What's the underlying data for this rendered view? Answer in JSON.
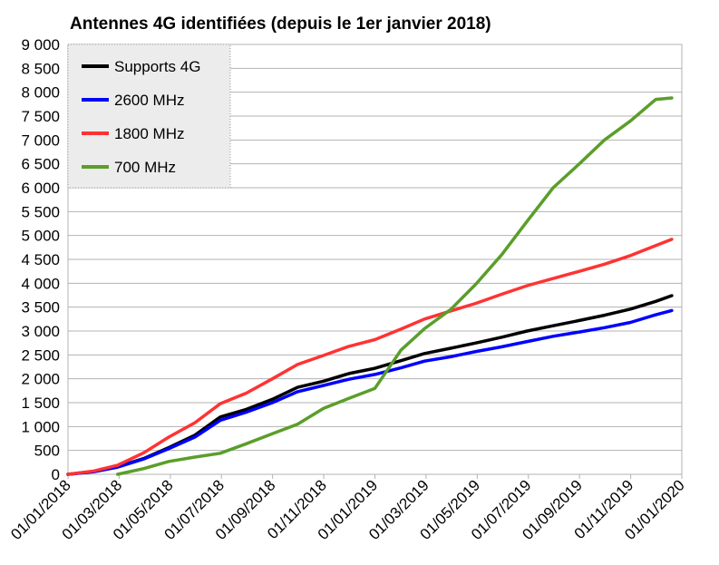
{
  "chart_data": {
    "type": "line",
    "title": "Antennes 4G identifiées (depuis le 1er janvier 2018)",
    "xlabel": "",
    "ylabel": "",
    "x_tick_labels": [
      "01/01/2018",
      "01/03/2018",
      "01/05/2018",
      "01/07/2018",
      "01/09/2018",
      "01/11/2018",
      "01/01/2019",
      "01/03/2019",
      "01/05/2019",
      "01/07/2019",
      "01/09/2019",
      "01/11/2019",
      "01/01/2020"
    ],
    "x_range": [
      "2018-01-01",
      "2020-01-01"
    ],
    "y_range": [
      0,
      9000
    ],
    "y_tick_labels": [
      "0",
      "500",
      "1 000",
      "1 500",
      "2 000",
      "2 500",
      "3 000",
      "3 500",
      "4 000",
      "4 500",
      "5 000",
      "5 500",
      "6 000",
      "6 500",
      "7 000",
      "7 500",
      "8 000",
      "8 500",
      "9 000"
    ],
    "grid": "horizontal",
    "legend_position": "top-left",
    "series": [
      {
        "name": "Supports 4G",
        "color": "#000000",
        "points": [
          [
            "2018-01-01",
            0
          ],
          [
            "2018-02-01",
            60
          ],
          [
            "2018-03-01",
            160
          ],
          [
            "2018-04-01",
            330
          ],
          [
            "2018-05-01",
            560
          ],
          [
            "2018-06-01",
            820
          ],
          [
            "2018-07-01",
            1200
          ],
          [
            "2018-08-01",
            1360
          ],
          [
            "2018-09-01",
            1570
          ],
          [
            "2018-10-01",
            1820
          ],
          [
            "2018-11-01",
            1950
          ],
          [
            "2018-12-01",
            2110
          ],
          [
            "2019-01-01",
            2220
          ],
          [
            "2019-02-01",
            2380
          ],
          [
            "2019-03-01",
            2530
          ],
          [
            "2019-04-01",
            2640
          ],
          [
            "2019-05-01",
            2750
          ],
          [
            "2019-06-01",
            2870
          ],
          [
            "2019-07-01",
            3000
          ],
          [
            "2019-08-01",
            3110
          ],
          [
            "2019-09-01",
            3220
          ],
          [
            "2019-10-01",
            3330
          ],
          [
            "2019-11-01",
            3460
          ],
          [
            "2019-12-01",
            3620
          ],
          [
            "2019-12-20",
            3740
          ]
        ]
      },
      {
        "name": "2600 MHz",
        "color": "#0000ff",
        "points": [
          [
            "2018-01-01",
            0
          ],
          [
            "2018-02-01",
            55
          ],
          [
            "2018-03-01",
            150
          ],
          [
            "2018-04-01",
            320
          ],
          [
            "2018-05-01",
            540
          ],
          [
            "2018-06-01",
            780
          ],
          [
            "2018-07-01",
            1130
          ],
          [
            "2018-08-01",
            1300
          ],
          [
            "2018-09-01",
            1500
          ],
          [
            "2018-10-01",
            1730
          ],
          [
            "2018-11-01",
            1860
          ],
          [
            "2018-12-01",
            1990
          ],
          [
            "2019-01-01",
            2090
          ],
          [
            "2019-02-01",
            2230
          ],
          [
            "2019-03-01",
            2370
          ],
          [
            "2019-04-01",
            2460
          ],
          [
            "2019-05-01",
            2570
          ],
          [
            "2019-06-01",
            2670
          ],
          [
            "2019-07-01",
            2780
          ],
          [
            "2019-08-01",
            2890
          ],
          [
            "2019-09-01",
            2980
          ],
          [
            "2019-10-01",
            3070
          ],
          [
            "2019-11-01",
            3180
          ],
          [
            "2019-12-01",
            3340
          ],
          [
            "2019-12-20",
            3430
          ]
        ]
      },
      {
        "name": "1800 MHz",
        "color": "#ff3333",
        "points": [
          [
            "2018-01-01",
            0
          ],
          [
            "2018-02-01",
            70
          ],
          [
            "2018-03-01",
            190
          ],
          [
            "2018-04-01",
            450
          ],
          [
            "2018-05-01",
            780
          ],
          [
            "2018-06-01",
            1080
          ],
          [
            "2018-07-01",
            1480
          ],
          [
            "2018-08-01",
            1700
          ],
          [
            "2018-09-01",
            2000
          ],
          [
            "2018-10-01",
            2300
          ],
          [
            "2018-11-01",
            2490
          ],
          [
            "2018-12-01",
            2680
          ],
          [
            "2019-01-01",
            2820
          ],
          [
            "2019-02-01",
            3040
          ],
          [
            "2019-03-01",
            3250
          ],
          [
            "2019-04-01",
            3420
          ],
          [
            "2019-05-01",
            3580
          ],
          [
            "2019-06-01",
            3770
          ],
          [
            "2019-07-01",
            3950
          ],
          [
            "2019-08-01",
            4100
          ],
          [
            "2019-09-01",
            4250
          ],
          [
            "2019-10-01",
            4400
          ],
          [
            "2019-11-01",
            4580
          ],
          [
            "2019-12-01",
            4790
          ],
          [
            "2019-12-20",
            4920
          ]
        ]
      },
      {
        "name": "700 MHz",
        "color": "#5a9e2a",
        "points": [
          [
            "2018-03-01",
            0
          ],
          [
            "2018-04-01",
            120
          ],
          [
            "2018-05-01",
            270
          ],
          [
            "2018-06-01",
            360
          ],
          [
            "2018-07-01",
            440
          ],
          [
            "2018-08-01",
            640
          ],
          [
            "2018-09-01",
            850
          ],
          [
            "2018-10-01",
            1050
          ],
          [
            "2018-11-01",
            1380
          ],
          [
            "2018-12-01",
            1590
          ],
          [
            "2019-01-01",
            1800
          ],
          [
            "2019-02-01",
            2600
          ],
          [
            "2019-03-01",
            3050
          ],
          [
            "2019-04-01",
            3450
          ],
          [
            "2019-05-01",
            3980
          ],
          [
            "2019-06-01",
            4600
          ],
          [
            "2019-07-01",
            5300
          ],
          [
            "2019-08-01",
            6000
          ],
          [
            "2019-09-01",
            6500
          ],
          [
            "2019-10-01",
            7000
          ],
          [
            "2019-11-01",
            7400
          ],
          [
            "2019-12-01",
            7850
          ],
          [
            "2019-12-20",
            7880
          ]
        ]
      }
    ]
  }
}
